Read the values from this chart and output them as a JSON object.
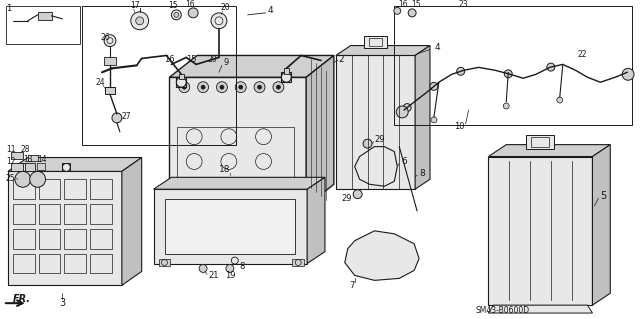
{
  "bg_color": "#ffffff",
  "line_color": "#1a1a1a",
  "diagram_code": "SM43-B0600D",
  "fig_width": 6.4,
  "fig_height": 3.19,
  "dpi": 100,
  "gray_fill": "#d0d0d0",
  "light_fill": "#e8e8e8",
  "mid_fill": "#c0c0c0"
}
